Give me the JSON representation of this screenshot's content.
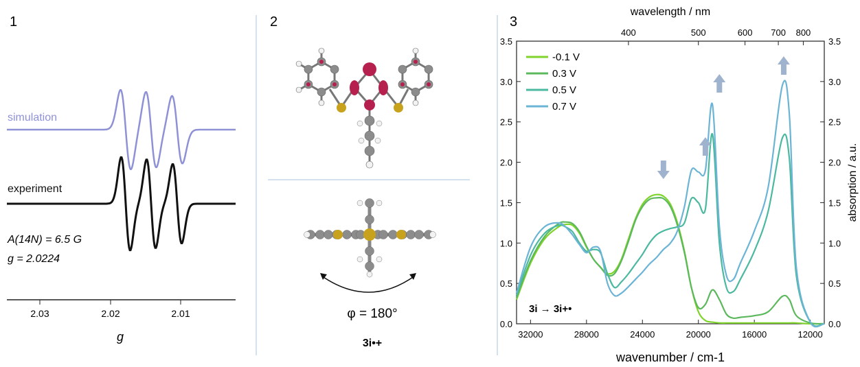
{
  "panels": [
    {
      "label": "1"
    },
    {
      "label": "2"
    },
    {
      "label": "3"
    }
  ],
  "epr": {
    "curve_labels": [
      "simulation",
      "experiment"
    ],
    "params": [
      "A(14N) = 6.5 G",
      "g = 2.0224"
    ],
    "xlabel": "g",
    "x_ticks": [
      "2.03",
      "2.02",
      "2.01"
    ],
    "colors": {
      "simulation": "#8f91d6",
      "experiment": "#111111"
    }
  },
  "molecule": {
    "phi_label": "φ = 180°",
    "name": "3i•+",
    "colors": {
      "carbon": "#8c8c8c",
      "hydrogen": "#f2f2f2",
      "sulfur": "#c8a21c",
      "lobe": "#b5204f"
    }
  },
  "chart_data": {
    "type": "line",
    "xlabel": "wavenumber / cm-1",
    "x2label": "wavelength / nm",
    "ylabel": "absorption / a.u.",
    "xlim": [
      33000,
      11000
    ],
    "ylim": [
      0,
      3.5
    ],
    "x_ticks": [
      32000,
      28000,
      24000,
      20000,
      16000,
      12000
    ],
    "x2_ticks": [
      400,
      500,
      600,
      700,
      800
    ],
    "y_ticks": [
      0.0,
      0.5,
      1.0,
      1.5,
      2.0,
      2.5,
      3.0,
      3.5
    ],
    "legend_position": "top-left",
    "annotation": "3i → 3i+•",
    "arrows": {
      "down": [
        22500
      ],
      "up": [
        19500,
        18500,
        13900
      ]
    },
    "series": [
      {
        "name": "-0.1 V",
        "color": "#7fd32a",
        "x": [
          33000,
          32000,
          31000,
          30000,
          29500,
          29000,
          28500,
          28000,
          27500,
          27000,
          26500,
          26000,
          25500,
          25000,
          24500,
          24000,
          23500,
          23000,
          22500,
          22000,
          21500,
          21000,
          20500,
          20000,
          19500,
          19000,
          18500,
          18000,
          17500,
          17000,
          16000,
          15000,
          14000,
          13500,
          13000,
          12000,
          11000
        ],
        "y": [
          0.3,
          0.75,
          1.05,
          1.2,
          1.23,
          1.22,
          1.12,
          0.95,
          0.8,
          0.7,
          0.62,
          0.65,
          0.8,
          1.05,
          1.3,
          1.48,
          1.57,
          1.6,
          1.58,
          1.48,
          1.25,
          0.9,
          0.45,
          0.15,
          0.04,
          0.02,
          0.01,
          0.01,
          0.01,
          0.01,
          0.01,
          0.01,
          0.01,
          0.01,
          0.01,
          0.0,
          0.0
        ]
      },
      {
        "name": "0.3 V",
        "color": "#5cb85c",
        "x": [
          33000,
          32000,
          31000,
          30000,
          29500,
          29000,
          28500,
          28000,
          27500,
          27000,
          26500,
          26000,
          25500,
          25000,
          24500,
          24000,
          23500,
          23000,
          22500,
          22000,
          21500,
          21000,
          20500,
          20000,
          19500,
          19000,
          18500,
          18000,
          17500,
          17000,
          16000,
          15000,
          14000,
          13500,
          13000,
          12000,
          11000
        ],
        "y": [
          0.32,
          0.78,
          1.08,
          1.24,
          1.26,
          1.24,
          1.14,
          0.96,
          0.8,
          0.7,
          0.6,
          0.62,
          0.78,
          1.02,
          1.28,
          1.45,
          1.54,
          1.56,
          1.55,
          1.45,
          1.22,
          0.88,
          0.45,
          0.2,
          0.24,
          0.42,
          0.3,
          0.12,
          0.07,
          0.08,
          0.1,
          0.15,
          0.34,
          0.3,
          0.1,
          0.01,
          0.0
        ]
      },
      {
        "name": "0.5 V",
        "color": "#4bb8a0",
        "x": [
          33000,
          32000,
          31000,
          30000,
          29500,
          29000,
          28500,
          28000,
          27500,
          27000,
          26500,
          26000,
          25500,
          25000,
          24500,
          24000,
          23500,
          23000,
          22500,
          22000,
          21500,
          21000,
          20500,
          20000,
          19500,
          19000,
          18500,
          18000,
          17500,
          17000,
          16000,
          15000,
          14000,
          13500,
          13000,
          12000,
          11000
        ],
        "y": [
          0.35,
          0.85,
          1.12,
          1.22,
          1.2,
          1.14,
          1.0,
          0.9,
          0.92,
          0.88,
          0.62,
          0.45,
          0.52,
          0.62,
          0.74,
          0.86,
          1.0,
          1.1,
          1.15,
          1.18,
          1.2,
          1.25,
          1.55,
          1.5,
          1.42,
          2.35,
          1.0,
          0.45,
          0.4,
          0.55,
          0.9,
          1.4,
          2.3,
          2.05,
          0.6,
          0.02,
          0.0
        ]
      },
      {
        "name": "0.7 V",
        "color": "#6bb4d6",
        "x": [
          33000,
          32000,
          31000,
          30000,
          29500,
          29000,
          28500,
          28000,
          27500,
          27000,
          26500,
          26000,
          25500,
          25000,
          24500,
          24000,
          23500,
          23000,
          22500,
          22000,
          21500,
          21000,
          20500,
          20000,
          19500,
          19000,
          18500,
          18000,
          17500,
          17000,
          16000,
          15000,
          14000,
          13500,
          13000,
          12000,
          11000
        ],
        "y": [
          0.38,
          0.95,
          1.2,
          1.25,
          1.2,
          1.1,
          0.98,
          0.88,
          0.95,
          0.9,
          0.5,
          0.35,
          0.38,
          0.46,
          0.55,
          0.64,
          0.74,
          0.82,
          0.92,
          1.0,
          1.15,
          1.45,
          1.9,
          1.88,
          1.9,
          2.72,
          1.2,
          0.6,
          0.55,
          0.75,
          1.15,
          1.7,
          2.95,
          2.6,
          0.7,
          0.02,
          0.0
        ]
      }
    ]
  }
}
